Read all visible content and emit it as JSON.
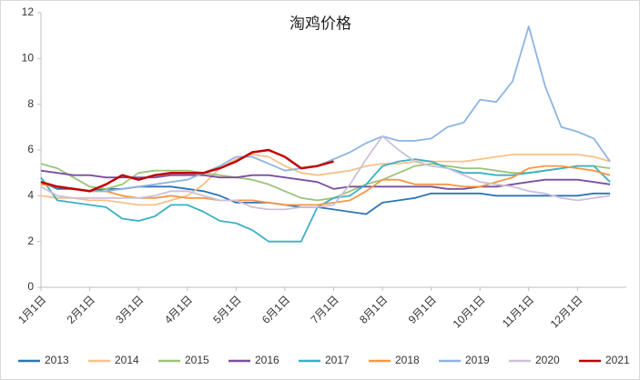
{
  "chart_data": {
    "type": "line",
    "title": "淘鸡价格",
    "categories": [
      "1月1日",
      null,
      null,
      "2月1日",
      null,
      null,
      "3月1日",
      null,
      null,
      "4月1日",
      null,
      null,
      "5月1日",
      null,
      null,
      "6月1日",
      null,
      null,
      "7月1日",
      null,
      null,
      "8月1日",
      null,
      null,
      "9月1日",
      null,
      null,
      "10月1日",
      null,
      null,
      "11月1日",
      null,
      null,
      "12月1日",
      null,
      null
    ],
    "ylim": [
      0,
      12
    ],
    "yticks": [
      0,
      2,
      4,
      6,
      8,
      10,
      12
    ],
    "grid": false,
    "legend": "bottom",
    "series": [
      {
        "name": "2013",
        "color": "#2e75b6",
        "values": [
          4.6,
          4.3,
          4.3,
          4.2,
          4.3,
          4.3,
          4.4,
          4.4,
          4.4,
          4.3,
          4.2,
          4.0,
          3.7,
          3.7,
          3.7,
          3.6,
          3.5,
          3.5,
          3.4,
          3.3,
          3.2,
          3.7,
          3.8,
          3.9,
          4.1,
          4.1,
          4.1,
          4.1,
          4.0,
          4.0,
          4.0,
          4.0,
          4.0,
          4.0,
          4.1,
          4.1
        ]
      },
      {
        "name": "2014",
        "color": "#f8c08a",
        "values": [
          4.0,
          3.9,
          3.9,
          3.8,
          3.8,
          3.7,
          3.6,
          3.6,
          3.8,
          4.0,
          4.5,
          5.2,
          5.6,
          5.8,
          5.7,
          5.3,
          5.0,
          4.9,
          5.0,
          5.1,
          5.3,
          5.4,
          5.4,
          5.5,
          5.5,
          5.5,
          5.5,
          5.6,
          5.7,
          5.8,
          5.8,
          5.8,
          5.8,
          5.8,
          5.7,
          5.5
        ]
      },
      {
        "name": "2015",
        "color": "#9bc47a",
        "values": [
          5.4,
          5.2,
          4.8,
          4.4,
          4.3,
          4.5,
          5.0,
          5.1,
          5.1,
          5.1,
          5.0,
          4.9,
          4.8,
          4.7,
          4.5,
          4.2,
          3.9,
          3.8,
          3.9,
          4.2,
          4.5,
          4.7,
          5.0,
          5.3,
          5.4,
          5.3,
          5.2,
          5.2,
          5.1,
          5.0,
          5.0,
          5.1,
          5.2,
          5.3,
          5.3,
          5.2
        ]
      },
      {
        "name": "2016",
        "color": "#7a4fa0",
        "values": [
          5.1,
          5.0,
          4.9,
          4.9,
          4.8,
          4.8,
          4.8,
          4.8,
          4.9,
          4.9,
          4.9,
          4.8,
          4.8,
          4.9,
          4.9,
          4.8,
          4.7,
          4.6,
          4.3,
          4.4,
          4.4,
          4.4,
          4.4,
          4.4,
          4.4,
          4.3,
          4.3,
          4.4,
          4.4,
          4.5,
          4.6,
          4.7,
          4.7,
          4.7,
          4.6,
          4.5
        ]
      },
      {
        "name": "2017",
        "color": "#3bb0c4",
        "values": [
          4.8,
          3.8,
          3.7,
          3.6,
          3.5,
          3.0,
          2.9,
          3.1,
          3.6,
          3.6,
          3.3,
          2.9,
          2.8,
          2.5,
          2.0,
          2.0,
          2.0,
          3.5,
          3.9,
          4.0,
          4.5,
          5.3,
          5.5,
          5.6,
          5.5,
          5.2,
          5.0,
          5.0,
          4.9,
          4.9,
          5.0,
          5.1,
          5.2,
          5.3,
          5.3,
          4.6
        ]
      },
      {
        "name": "2018",
        "color": "#f79646",
        "values": [
          4.5,
          4.4,
          4.3,
          4.2,
          4.2,
          4.0,
          3.9,
          3.9,
          4.0,
          3.9,
          3.9,
          3.8,
          3.8,
          3.8,
          3.7,
          3.6,
          3.6,
          3.6,
          3.7,
          3.8,
          4.2,
          4.7,
          4.7,
          4.5,
          4.5,
          4.5,
          4.4,
          4.4,
          4.6,
          4.8,
          5.2,
          5.3,
          5.3,
          5.2,
          5.1,
          4.9
        ]
      },
      {
        "name": "2019",
        "color": "#8db4e2",
        "values": [
          4.6,
          4.4,
          4.3,
          4.2,
          4.2,
          4.3,
          4.4,
          4.5,
          4.6,
          4.7,
          5.0,
          5.3,
          5.7,
          5.7,
          5.4,
          5.1,
          5.2,
          5.3,
          5.6,
          5.9,
          6.3,
          6.6,
          6.4,
          6.4,
          6.5,
          7.0,
          7.2,
          8.2,
          8.1,
          9.0,
          11.4,
          8.8,
          7.0,
          6.8,
          6.5,
          5.5
        ]
      },
      {
        "name": "2020",
        "color": "#ccc0da",
        "values": [
          4.4,
          4.0,
          3.9,
          3.9,
          3.9,
          3.9,
          3.9,
          4.0,
          4.2,
          4.2,
          4.0,
          3.8,
          3.8,
          3.5,
          3.4,
          3.4,
          3.5,
          3.5,
          3.6,
          4.5,
          5.6,
          6.6,
          6.0,
          5.5,
          5.3,
          5.2,
          4.9,
          4.6,
          4.5,
          4.4,
          4.2,
          4.1,
          3.9,
          3.8,
          3.9,
          4.0
        ]
      },
      {
        "name": "2021",
        "color": "#c00000",
        "values": [
          4.6,
          4.4,
          4.3,
          4.2,
          4.5,
          4.9,
          4.7,
          4.9,
          5.0,
          5.0,
          5.0,
          5.2,
          5.5,
          5.9,
          6.0,
          5.7,
          5.2,
          5.3,
          5.5,
          null,
          null,
          null,
          null,
          null,
          null,
          null,
          null,
          null,
          null,
          null,
          null,
          null,
          null,
          null,
          null,
          null
        ]
      }
    ]
  }
}
